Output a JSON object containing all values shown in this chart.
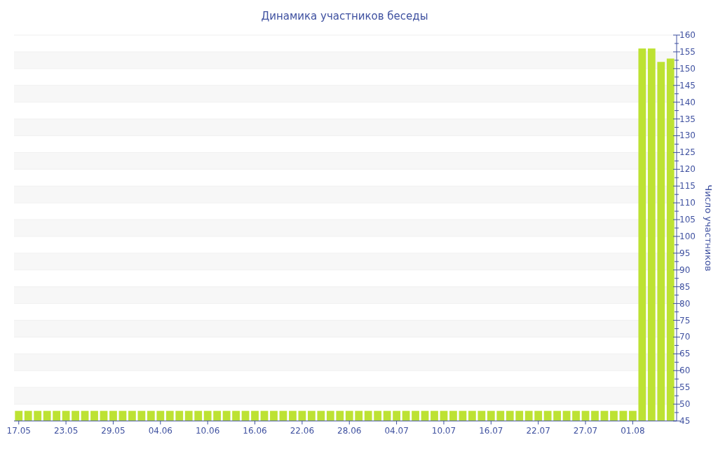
{
  "chart_data": {
    "type": "bar",
    "title": "Динамика участников беседы",
    "ylabel": "Число участников",
    "categories": [
      "17.05",
      null,
      null,
      null,
      null,
      "23.05",
      null,
      null,
      null,
      null,
      "29.05",
      null,
      null,
      null,
      null,
      "04.06",
      null,
      null,
      null,
      null,
      "10.06",
      null,
      null,
      null,
      null,
      "16.06",
      null,
      null,
      null,
      null,
      "22.06",
      null,
      null,
      null,
      null,
      "28.06",
      null,
      null,
      null,
      null,
      "04.07",
      null,
      null,
      null,
      null,
      "10.07",
      null,
      null,
      null,
      null,
      "16.07",
      null,
      null,
      null,
      null,
      "22.07",
      null,
      null,
      null,
      null,
      "27.07",
      null,
      null,
      null,
      null,
      "01.08",
      null,
      null,
      null,
      null
    ],
    "values": [
      48,
      48,
      48,
      48,
      48,
      48,
      48,
      48,
      48,
      48,
      48,
      48,
      48,
      48,
      48,
      48,
      48,
      48,
      48,
      48,
      48,
      48,
      48,
      48,
      48,
      48,
      48,
      48,
      48,
      48,
      48,
      48,
      48,
      48,
      48,
      48,
      48,
      48,
      48,
      48,
      48,
      48,
      48,
      48,
      48,
      48,
      48,
      48,
      48,
      48,
      48,
      48,
      48,
      48,
      48,
      48,
      48,
      48,
      48,
      48,
      48,
      48,
      48,
      48,
      48,
      48,
      156,
      156,
      152,
      153
    ],
    "color": "#bde233",
    "ylim": [
      45,
      160
    ],
    "yticks": [
      45,
      {
        "value": 47.5,
        "label": null
      },
      50,
      {
        "value": 52.5,
        "label": null
      },
      55,
      {
        "value": 57.5,
        "label": null
      },
      60,
      {
        "value": 62.5,
        "label": null
      },
      65,
      {
        "value": 67.5,
        "label": null
      },
      70,
      {
        "value": 72.5,
        "label": null
      },
      75,
      {
        "value": 77.5,
        "label": null
      },
      80,
      {
        "value": 82.5,
        "label": null
      },
      85,
      {
        "value": 87.5,
        "label": null
      },
      90,
      {
        "value": 92.5,
        "label": null
      },
      95,
      {
        "value": 97.5,
        "label": null
      },
      100,
      {
        "value": 102.5,
        "label": null
      },
      105,
      {
        "value": 107.5,
        "label": null
      },
      110,
      {
        "value": 112.5,
        "label": null
      },
      115,
      {
        "value": 117.5,
        "label": null
      },
      120,
      {
        "value": 122.5,
        "label": null
      },
      125,
      {
        "value": 127.5,
        "label": null
      },
      130,
      {
        "value": 132.5,
        "label": null
      },
      135,
      {
        "value": 137.5,
        "label": null
      },
      140,
      {
        "value": 142.5,
        "label": null
      },
      145,
      {
        "value": 147.5,
        "label": null
      },
      150,
      {
        "value": 152.5,
        "label": null
      },
      155,
      {
        "value": 157.5,
        "label": null
      },
      160
    ],
    "grid": "y"
  }
}
